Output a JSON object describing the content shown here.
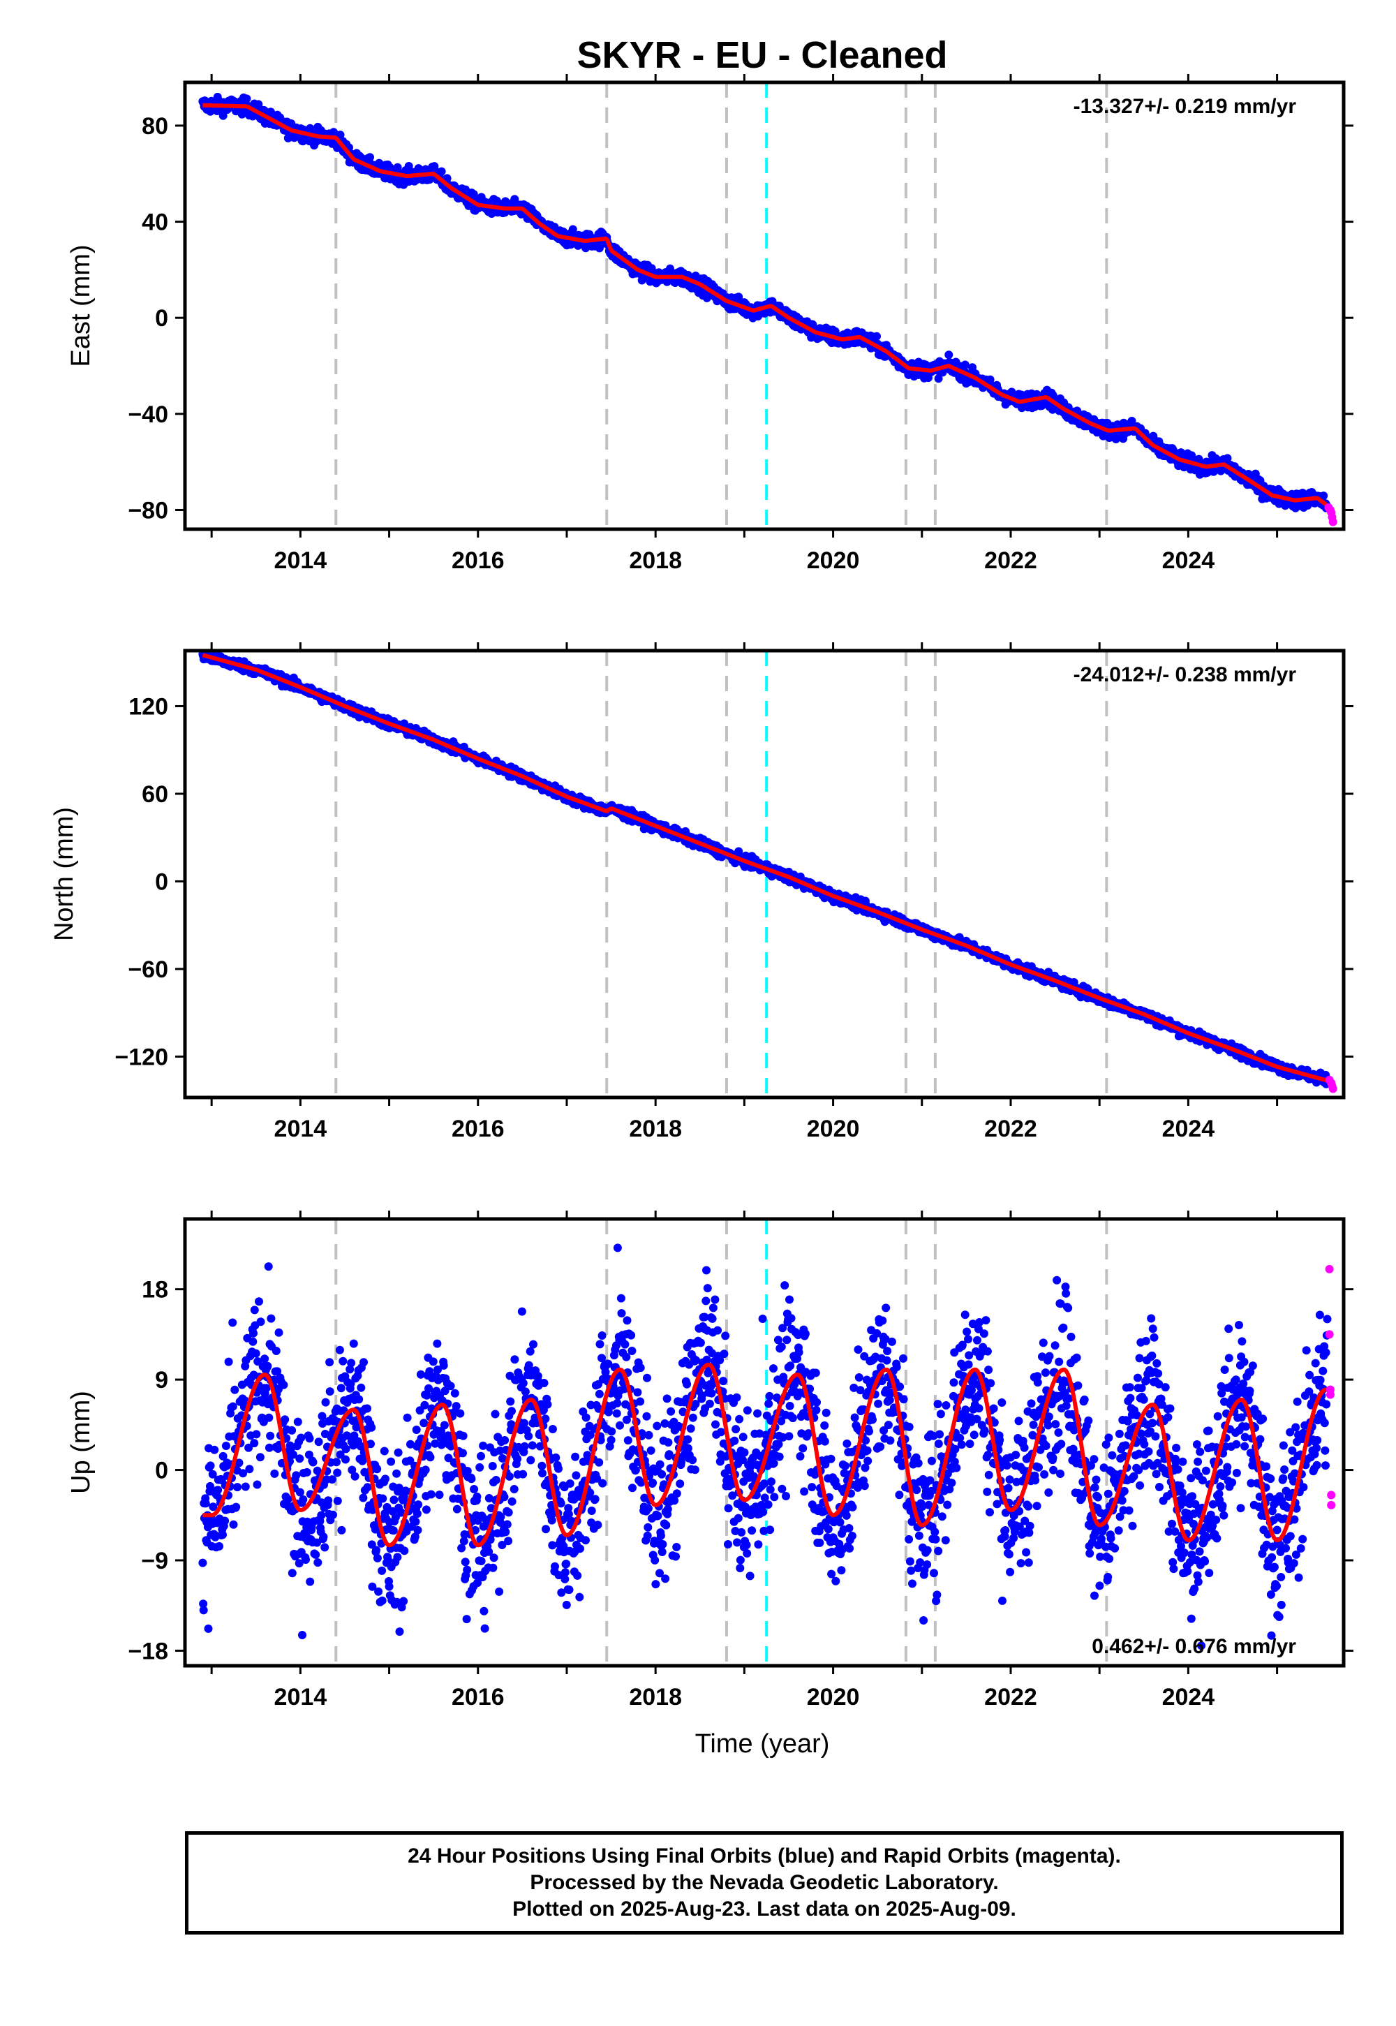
{
  "figure": {
    "title": "SKYR  - EU - Cleaned",
    "x_axis_label": "Time (year)",
    "footer_lines": [
      "24 Hour Positions Using Final Orbits (blue) and Rapid Orbits (magenta).",
      "Processed by the Nevada Geodetic Laboratory.",
      "Plotted on 2025-Aug-23. Last data on 2025-Aug-09."
    ],
    "colors": {
      "final_orbits": "#0000ff",
      "rapid_orbits": "#ff00ff",
      "model_fit": "#ff0000",
      "event_lines": "#c0c0c0",
      "highlight_event_line": "#00ffff"
    }
  },
  "chart_data": [
    {
      "type": "scatter",
      "component": "East",
      "ylabel": "East (mm)",
      "rate_label": "-13.327+/- 0.219 mm/yr",
      "xlim": [
        2012.7,
        2025.75
      ],
      "ylim": [
        -88,
        98
      ],
      "yticks": [
        80,
        40,
        0,
        -40,
        -80
      ],
      "ytick_labels": [
        "80",
        "40",
        "0",
        "−40",
        "−80"
      ],
      "xticks": [
        2014,
        2016,
        2018,
        2020,
        2022,
        2024
      ],
      "trend_mm_per_yr": -13.327,
      "fit_points": [
        [
          2012.9,
          88.5
        ],
        [
          2013.4,
          88.0
        ],
        [
          2013.6,
          84
        ],
        [
          2013.9,
          78
        ],
        [
          2014.2,
          75.5
        ],
        [
          2014.4,
          75
        ],
        [
          2014.6,
          66
        ],
        [
          2014.9,
          61
        ],
        [
          2015.2,
          59
        ],
        [
          2015.5,
          60
        ],
        [
          2015.7,
          54
        ],
        [
          2016.0,
          47
        ],
        [
          2016.3,
          45.5
        ],
        [
          2016.5,
          45.5
        ],
        [
          2016.7,
          39
        ],
        [
          2016.9,
          34
        ],
        [
          2017.2,
          32
        ],
        [
          2017.45,
          33
        ],
        [
          2017.5,
          28
        ],
        [
          2017.8,
          20
        ],
        [
          2018.0,
          17
        ],
        [
          2018.3,
          17
        ],
        [
          2018.5,
          14
        ],
        [
          2018.8,
          7
        ],
        [
          2019.1,
          3
        ],
        [
          2019.3,
          5
        ],
        [
          2019.5,
          0
        ],
        [
          2019.8,
          -6
        ],
        [
          2020.1,
          -9
        ],
        [
          2020.3,
          -8
        ],
        [
          2020.6,
          -14
        ],
        [
          2020.85,
          -21
        ],
        [
          2021.1,
          -22
        ],
        [
          2021.3,
          -20
        ],
        [
          2021.6,
          -25
        ],
        [
          2021.9,
          -32
        ],
        [
          2022.1,
          -35
        ],
        [
          2022.4,
          -33
        ],
        [
          2022.6,
          -38
        ],
        [
          2022.9,
          -44
        ],
        [
          2023.1,
          -47
        ],
        [
          2023.4,
          -46
        ],
        [
          2023.6,
          -53
        ],
        [
          2023.9,
          -59
        ],
        [
          2024.2,
          -62
        ],
        [
          2024.4,
          -61
        ],
        [
          2024.7,
          -68
        ],
        [
          2024.95,
          -74
        ],
        [
          2025.2,
          -76
        ],
        [
          2025.45,
          -75
        ],
        [
          2025.6,
          -79
        ]
      ],
      "rapid_points": [
        [
          2025.58,
          -79
        ],
        [
          2025.6,
          -80
        ],
        [
          2025.61,
          -81
        ],
        [
          2025.62,
          -83
        ],
        [
          2025.63,
          -85
        ]
      ],
      "scatter_noise_mm": 2
    },
    {
      "type": "scatter",
      "component": "North",
      "ylabel": "North (mm)",
      "rate_label": "-24.012+/- 0.238 mm/yr",
      "xlim": [
        2012.7,
        2025.75
      ],
      "ylim": [
        -148,
        158
      ],
      "yticks": [
        120,
        60,
        0,
        -60,
        -120
      ],
      "ytick_labels": [
        "120",
        "60",
        "0",
        "−60",
        "−120"
      ],
      "xticks": [
        2014,
        2016,
        2018,
        2020,
        2022,
        2024
      ],
      "trend_mm_per_yr": -24.012,
      "fit_points": [
        [
          2012.9,
          155
        ],
        [
          2013.5,
          145
        ],
        [
          2014.0,
          133
        ],
        [
          2014.5,
          120
        ],
        [
          2015.0,
          108
        ],
        [
          2015.5,
          97
        ],
        [
          2016.0,
          84
        ],
        [
          2016.5,
          72
        ],
        [
          2017.0,
          58
        ],
        [
          2017.45,
          48
        ],
        [
          2017.5,
          50
        ],
        [
          2018.0,
          38
        ],
        [
          2018.5,
          26
        ],
        [
          2019.0,
          14
        ],
        [
          2019.5,
          3
        ],
        [
          2020.0,
          -10
        ],
        [
          2020.5,
          -21
        ],
        [
          2021.0,
          -33
        ],
        [
          2021.5,
          -44
        ],
        [
          2022.0,
          -57
        ],
        [
          2022.5,
          -68
        ],
        [
          2023.0,
          -80
        ],
        [
          2023.5,
          -91
        ],
        [
          2024.0,
          -104
        ],
        [
          2024.5,
          -115
        ],
        [
          2025.0,
          -127
        ],
        [
          2025.6,
          -137
        ]
      ],
      "rapid_points": [
        [
          2025.59,
          -136
        ],
        [
          2025.61,
          -138
        ],
        [
          2025.62,
          -140
        ],
        [
          2025.63,
          -142
        ]
      ],
      "scatter_noise_mm": 2.2
    },
    {
      "type": "scatter",
      "component": "Up",
      "ylabel": "Up (mm)",
      "rate_label": "0.462+/- 0.676 mm/yr",
      "xlim": [
        2012.7,
        2025.75
      ],
      "ylim": [
        -19.5,
        25
      ],
      "yticks": [
        18,
        9,
        0,
        -9,
        -18
      ],
      "ytick_labels": [
        "18",
        "9",
        "0",
        "−9",
        "−18"
      ],
      "xticks": [
        2014,
        2016,
        2018,
        2020,
        2022,
        2024
      ],
      "trend_mm_per_yr": 0.462,
      "seasonal_amplitude_mm": 7.5,
      "fit_minima": [
        [
          2013.0,
          -4.5
        ],
        [
          2014.0,
          -4
        ],
        [
          2015.0,
          -7.5
        ],
        [
          2016.0,
          -7.5
        ],
        [
          2017.0,
          -6.5
        ],
        [
          2018.0,
          -3.5
        ],
        [
          2019.0,
          -3
        ],
        [
          2020.0,
          -4.5
        ],
        [
          2021.0,
          -5.5
        ],
        [
          2022.0,
          -4
        ],
        [
          2023.0,
          -5.5
        ],
        [
          2024.0,
          -7
        ],
        [
          2025.0,
          -7
        ]
      ],
      "fit_maxima": [
        [
          2013.6,
          9.5
        ],
        [
          2014.6,
          6
        ],
        [
          2015.6,
          6.5
        ],
        [
          2016.6,
          7
        ],
        [
          2017.6,
          10
        ],
        [
          2018.6,
          10.5
        ],
        [
          2019.6,
          9.5
        ],
        [
          2020.6,
          10
        ],
        [
          2021.6,
          10
        ],
        [
          2022.6,
          10
        ],
        [
          2023.6,
          6.5
        ],
        [
          2024.6,
          7
        ],
        [
          2025.55,
          8
        ]
      ],
      "rapid_points": [
        [
          2025.59,
          20
        ],
        [
          2025.59,
          13.5
        ],
        [
          2025.6,
          8
        ],
        [
          2025.6,
          7.5
        ],
        [
          2025.61,
          -2.5
        ],
        [
          2025.61,
          -3.5
        ]
      ],
      "scatter_noise_mm": 4
    }
  ],
  "event_lines": [
    {
      "year": 2014.4,
      "style": "gray"
    },
    {
      "year": 2017.45,
      "style": "gray"
    },
    {
      "year": 2018.8,
      "style": "gray"
    },
    {
      "year": 2019.25,
      "style": "cyan"
    },
    {
      "year": 2020.82,
      "style": "gray"
    },
    {
      "year": 2021.15,
      "style": "gray"
    },
    {
      "year": 2023.08,
      "style": "gray"
    }
  ]
}
